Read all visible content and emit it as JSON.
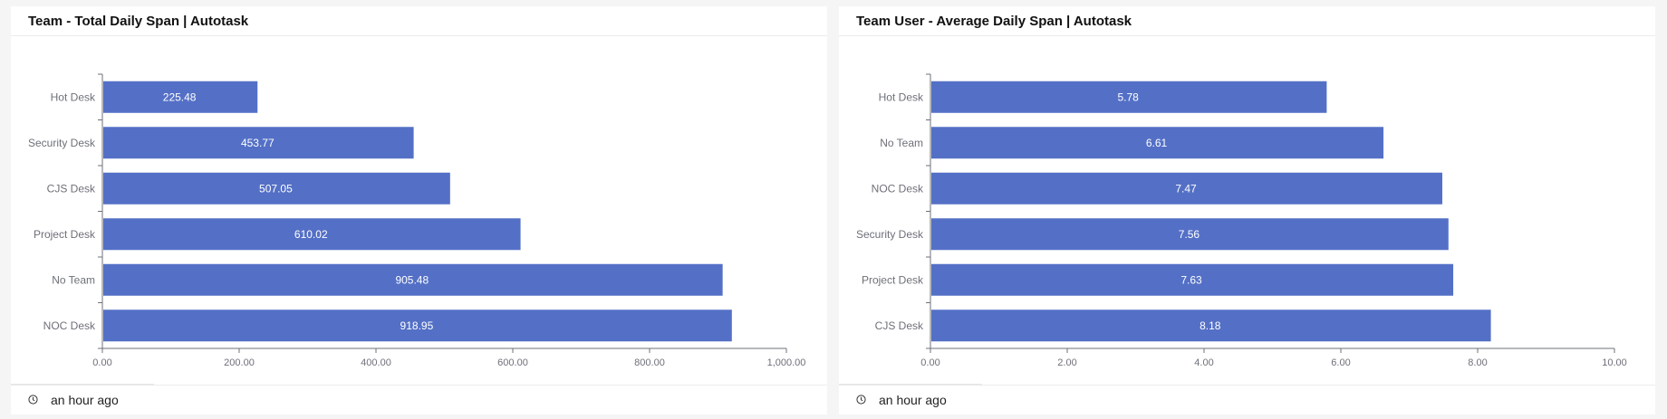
{
  "chart_data": [
    {
      "type": "bar",
      "orientation": "horizontal",
      "title": "Team - Total Daily Span | Autotask",
      "categories": [
        "Hot Desk",
        "Security Desk",
        "CJS Desk",
        "Project Desk",
        "No Team",
        "NOC Desk"
      ],
      "values": [
        225.48,
        453.77,
        507.05,
        610.02,
        905.48,
        918.95
      ],
      "value_labels": [
        "225.48",
        "453.77",
        "507.05",
        "610.02",
        "905.48",
        "918.95"
      ],
      "xlim": [
        0,
        1000
      ],
      "xticks": [
        0,
        200,
        400,
        600,
        800,
        1000
      ],
      "xtick_labels": [
        "0.00",
        "200.00",
        "400.00",
        "600.00",
        "800.00",
        "1,000.00"
      ],
      "grid": false,
      "color": "#5470C6",
      "footer": "an hour ago"
    },
    {
      "type": "bar",
      "orientation": "horizontal",
      "title": "Team User - Average Daily Span | Autotask",
      "categories": [
        "Hot Desk",
        "No Team",
        "NOC Desk",
        "Security Desk",
        "Project Desk",
        "CJS Desk"
      ],
      "values": [
        5.78,
        6.61,
        7.47,
        7.56,
        7.63,
        8.18
      ],
      "value_labels": [
        "5.78",
        "6.61",
        "7.47",
        "7.56",
        "7.63",
        "8.18"
      ],
      "xlim": [
        0,
        10
      ],
      "xticks": [
        0,
        2,
        4,
        6,
        8,
        10
      ],
      "xtick_labels": [
        "0.00",
        "2.00",
        "4.00",
        "6.00",
        "8.00",
        "10.00"
      ],
      "grid": false,
      "color": "#5470C6",
      "footer": "an hour ago"
    }
  ]
}
